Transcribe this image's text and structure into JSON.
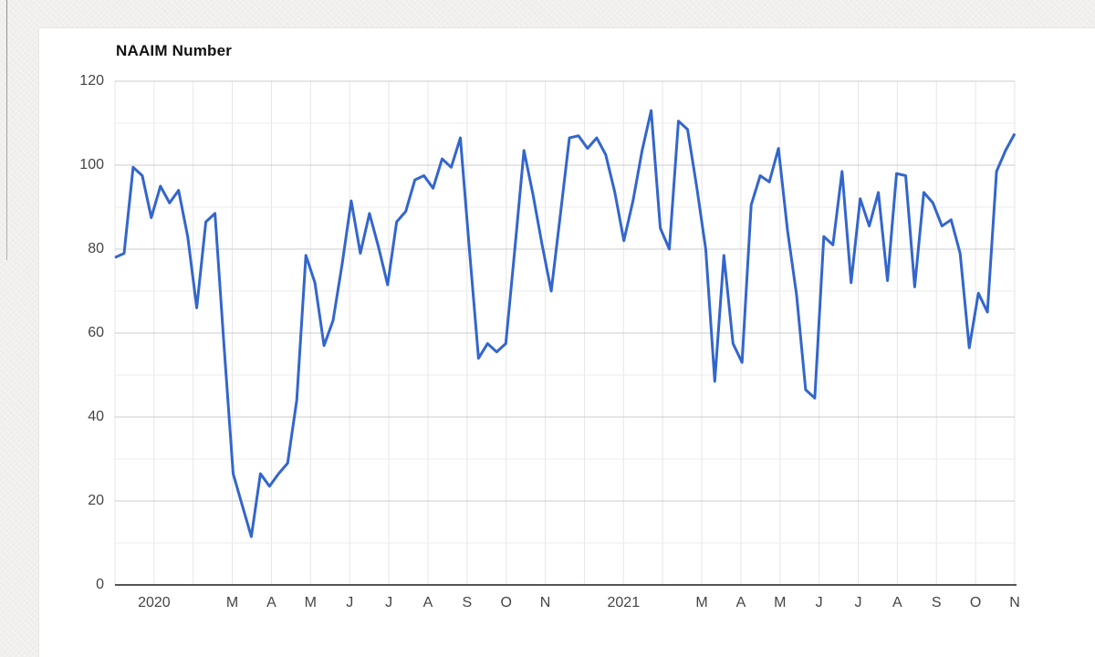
{
  "page": {
    "background_color": "#f1f0ee",
    "card_color": "#ffffff"
  },
  "chart_data": {
    "type": "line",
    "title": "NAAIM Number",
    "series": [
      {
        "name": "NAAIM Number",
        "color": "#3366cc",
        "x_note": "weekly readings, late Nov 2019 through early Nov 2021, evenly spaced",
        "values": [
          78,
          79,
          99.5,
          97.5,
          87.5,
          95,
          91,
          94,
          83,
          66,
          86.5,
          88.5,
          57,
          26.5,
          19,
          11.5,
          26.5,
          23.5,
          26.5,
          29,
          44,
          78.5,
          72,
          57,
          63,
          76.5,
          91.5,
          79,
          88.5,
          80.5,
          71.5,
          86.5,
          89,
          96.5,
          97.5,
          94.5,
          101.5,
          99.5,
          106.5,
          80,
          54,
          57.5,
          55.5,
          57.5,
          80,
          103.5,
          93,
          81,
          70,
          88,
          106.5,
          107,
          104,
          106.5,
          102.5,
          93.5,
          82,
          91.5,
          103.5,
          113,
          85,
          80,
          110.5,
          108.5,
          95,
          80,
          48.5,
          78.5,
          57.5,
          53,
          90.5,
          97.5,
          96,
          104,
          84.5,
          69,
          46.5,
          44.5,
          83,
          81,
          98.5,
          72,
          92,
          85.5,
          93.5,
          72.5,
          98,
          97.5,
          71,
          93.5,
          91,
          85.5,
          87,
          79,
          56.5,
          69.5,
          65,
          98.5,
          103.5,
          107.5
        ]
      }
    ],
    "xlabel": "",
    "ylabel": "",
    "ylim": [
      0,
      120
    ],
    "y_major_step": 20,
    "y_minor_step": 10,
    "x_gridline_count": 24,
    "x_tick_labels": [
      {
        "gridline": 1,
        "label": "2020"
      },
      {
        "gridline": 3,
        "label": "M"
      },
      {
        "gridline": 4,
        "label": "A"
      },
      {
        "gridline": 5,
        "label": "M"
      },
      {
        "gridline": 6,
        "label": "J"
      },
      {
        "gridline": 7,
        "label": "J"
      },
      {
        "gridline": 8,
        "label": "A"
      },
      {
        "gridline": 9,
        "label": "S"
      },
      {
        "gridline": 10,
        "label": "O"
      },
      {
        "gridline": 11,
        "label": "N"
      },
      {
        "gridline": 13,
        "label": "2021"
      },
      {
        "gridline": 15,
        "label": "M"
      },
      {
        "gridline": 16,
        "label": "A"
      },
      {
        "gridline": 17,
        "label": "M"
      },
      {
        "gridline": 18,
        "label": "J"
      },
      {
        "gridline": 19,
        "label": "J"
      },
      {
        "gridline": 20,
        "label": "A"
      },
      {
        "gridline": 21,
        "label": "S"
      },
      {
        "gridline": 22,
        "label": "O"
      },
      {
        "gridline": 23,
        "label": "N"
      }
    ],
    "grid": true,
    "legend_position": "none",
    "colors": {
      "major_gridline": "#cccccc",
      "minor_gridline": "#ebebeb",
      "vertical_gridline": "#e6e6e6",
      "baseline": "#555555",
      "tick_label": "#444444"
    }
  }
}
